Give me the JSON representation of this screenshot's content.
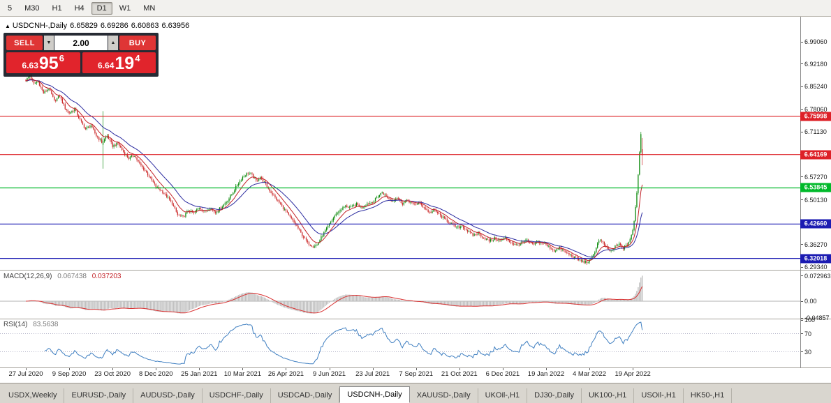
{
  "toolbar": {
    "timeframes": [
      {
        "label": "5",
        "active": false
      },
      {
        "label": "M30",
        "active": false
      },
      {
        "label": "H1",
        "active": false
      },
      {
        "label": "H4",
        "active": false
      },
      {
        "label": "D1",
        "active": true
      },
      {
        "label": "W1",
        "active": false
      },
      {
        "label": "MN",
        "active": false
      }
    ]
  },
  "chart_header": {
    "collapse_icon": "▲",
    "symbol": "USDCNH-,Daily",
    "ohlc": {
      "open": "6.65829",
      "high": "6.69286",
      "low": "6.60863",
      "close": "6.63956"
    }
  },
  "trade_panel": {
    "sell_label": "SELL",
    "buy_label": "BUY",
    "volume": "2.00",
    "spin_down_icon": "▼",
    "spin_up_icon": "▲",
    "sell_price": {
      "prefix": "6.63",
      "big": "95",
      "sup": "6"
    },
    "buy_price": {
      "prefix": "6.64",
      "big": "19",
      "sup": "4"
    },
    "colors": {
      "button_red": "#df3535",
      "price_red": "#e1242c"
    }
  },
  "indicators": {
    "macd_label": {
      "name": "MACD(12,26,9)",
      "main_value": "0.067438",
      "signal_value": "0.037203"
    },
    "rsi_label": {
      "name": "RSI(14)",
      "value": "83.5638"
    }
  },
  "price_axis": {
    "ticks": [
      "6.99060",
      "6.92180",
      "6.85240",
      "6.78060",
      "6.71130",
      "6.57270",
      "6.50130",
      "6.36270",
      "6.29340"
    ],
    "flags": [
      {
        "value": "6.75998",
        "color": "#dd2027"
      },
      {
        "value": "6.64169",
        "color": "#dd2027"
      },
      {
        "value": "6.53845",
        "color": "#00b92a"
      },
      {
        "value": "6.42660",
        "color": "#1b1bb2"
      },
      {
        "value": "6.32018",
        "color": "#1b1bb2"
      }
    ]
  },
  "macd_axis": [
    {
      "label": "0.072963",
      "value": 0.072963
    },
    {
      "label": "0.00",
      "value": 0
    },
    {
      "label": "-0.04857",
      "value": -0.04857
    }
  ],
  "rsi_axis": [
    {
      "label": "100",
      "value": 100
    },
    {
      "label": "70",
      "value": 70
    },
    {
      "label": "30",
      "value": 30
    }
  ],
  "tabs": [
    {
      "label": "USDX,Weekly",
      "active": false
    },
    {
      "label": "EURUSD-,Daily",
      "active": false
    },
    {
      "label": "AUDUSD-,Daily",
      "active": false
    },
    {
      "label": "USDCHF-,Daily",
      "active": false
    },
    {
      "label": "USDCAD-,Daily",
      "active": false
    },
    {
      "label": "USDCNH-,Daily",
      "active": true
    },
    {
      "label": "XAUUSD-,Daily",
      "active": false
    },
    {
      "label": "UKOil-,H1",
      "active": false
    },
    {
      "label": "DJ30-,Daily",
      "active": false
    },
    {
      "label": "UK100-,H1",
      "active": false
    },
    {
      "label": "USOil-,H1",
      "active": false
    },
    {
      "label": "HK50-,H1",
      "active": false
    }
  ],
  "chart_data": {
    "type": "candlestick",
    "symbol": "USDCNH",
    "timeframe": "Daily",
    "title": "USDCNH-,Daily",
    "candle_count": 456,
    "candles_per_label": 32,
    "x_labels": [
      "27 Jul 2020",
      "9 Sep 2020",
      "23 Oct 2020",
      "8 Dec 2020",
      "25 Jan 2021",
      "10 Mar 2021",
      "26 Apr 2021",
      "9 Jun 2021",
      "23 Jul 2021",
      "7 Sep 2021",
      "21 Oct 2021",
      "6 Dec 2021",
      "19 Jan 2022",
      "4 Mar 2022",
      "19 Apr 2022"
    ],
    "last_candle": {
      "open": 6.65829,
      "high": 6.69286,
      "low": 6.60863,
      "close": 6.63956
    },
    "april_2022_spike_high": 6.712,
    "spike_candle": {
      "index": 57,
      "open": 6.672,
      "high": 6.776,
      "low": 6.598,
      "close": 6.683
    },
    "close_anchors": [
      [
        0,
        6.872
      ],
      [
        3,
        6.886
      ],
      [
        6,
        6.86
      ],
      [
        9,
        6.868
      ],
      [
        13,
        6.832
      ],
      [
        17,
        6.846
      ],
      [
        21,
        6.808
      ],
      [
        25,
        6.822
      ],
      [
        29,
        6.785
      ],
      [
        32,
        6.77
      ],
      [
        36,
        6.782
      ],
      [
        40,
        6.748
      ],
      [
        44,
        6.72
      ],
      [
        48,
        6.732
      ],
      [
        52,
        6.7
      ],
      [
        56,
        6.68
      ],
      [
        57,
        6.683
      ],
      [
        60,
        6.7
      ],
      [
        64,
        6.668
      ],
      [
        68,
        6.676
      ],
      [
        72,
        6.65
      ],
      [
        76,
        6.63
      ],
      [
        80,
        6.64
      ],
      [
        84,
        6.612
      ],
      [
        88,
        6.592
      ],
      [
        92,
        6.568
      ],
      [
        96,
        6.542
      ],
      [
        100,
        6.53
      ],
      [
        104,
        6.512
      ],
      [
        108,
        6.49
      ],
      [
        112,
        6.455
      ],
      [
        116,
        6.448
      ],
      [
        120,
        6.468
      ],
      [
        124,
        6.46
      ],
      [
        128,
        6.478
      ],
      [
        132,
        6.465
      ],
      [
        136,
        6.478
      ],
      [
        140,
        6.462
      ],
      [
        144,
        6.478
      ],
      [
        148,
        6.495
      ],
      [
        152,
        6.518
      ],
      [
        156,
        6.548
      ],
      [
        160,
        6.572
      ],
      [
        164,
        6.585
      ],
      [
        167,
        6.578
      ],
      [
        170,
        6.56
      ],
      [
        173,
        6.572
      ],
      [
        176,
        6.555
      ],
      [
        180,
        6.53
      ],
      [
        184,
        6.508
      ],
      [
        188,
        6.488
      ],
      [
        192,
        6.465
      ],
      [
        196,
        6.442
      ],
      [
        200,
        6.42
      ],
      [
        204,
        6.392
      ],
      [
        208,
        6.368
      ],
      [
        212,
        6.358
      ],
      [
        215,
        6.362
      ],
      [
        218,
        6.385
      ],
      [
        221,
        6.405
      ],
      [
        224,
        6.425
      ],
      [
        228,
        6.452
      ],
      [
        232,
        6.47
      ],
      [
        236,
        6.482
      ],
      [
        240,
        6.478
      ],
      [
        244,
        6.488
      ],
      [
        248,
        6.478
      ],
      [
        252,
        6.49
      ],
      [
        256,
        6.495
      ],
      [
        260,
        6.512
      ],
      [
        263,
        6.525
      ],
      [
        266,
        6.512
      ],
      [
        270,
        6.498
      ],
      [
        274,
        6.508
      ],
      [
        278,
        6.49
      ],
      [
        282,
        6.5
      ],
      [
        286,
        6.486
      ],
      [
        290,
        6.492
      ],
      [
        294,
        6.478
      ],
      [
        298,
        6.462
      ],
      [
        302,
        6.468
      ],
      [
        306,
        6.452
      ],
      [
        310,
        6.44
      ],
      [
        314,
        6.428
      ],
      [
        318,
        6.415
      ],
      [
        322,
        6.42
      ],
      [
        326,
        6.405
      ],
      [
        330,
        6.392
      ],
      [
        334,
        6.398
      ],
      [
        338,
        6.384
      ],
      [
        342,
        6.374
      ],
      [
        346,
        6.382
      ],
      [
        350,
        6.375
      ],
      [
        354,
        6.383
      ],
      [
        358,
        6.37
      ],
      [
        362,
        6.36
      ],
      [
        366,
        6.368
      ],
      [
        370,
        6.375
      ],
      [
        374,
        6.362
      ],
      [
        378,
        6.372
      ],
      [
        382,
        6.368
      ],
      [
        386,
        6.356
      ],
      [
        390,
        6.344
      ],
      [
        394,
        6.352
      ],
      [
        398,
        6.34
      ],
      [
        402,
        6.33
      ],
      [
        406,
        6.32
      ],
      [
        410,
        6.312
      ],
      [
        414,
        6.308
      ],
      [
        417,
        6.315
      ],
      [
        420,
        6.342
      ],
      [
        423,
        6.378
      ],
      [
        426,
        6.368
      ],
      [
        429,
        6.35
      ],
      [
        432,
        6.342
      ],
      [
        435,
        6.356
      ],
      [
        438,
        6.364
      ],
      [
        441,
        6.352
      ],
      [
        444,
        6.362
      ],
      [
        446,
        6.38
      ],
      [
        448,
        6.405
      ],
      [
        449,
        6.435
      ],
      [
        450,
        6.478
      ],
      [
        451,
        6.525
      ],
      [
        452,
        6.582
      ],
      [
        453,
        6.648
      ],
      [
        454,
        6.705
      ],
      [
        455,
        6.64
      ]
    ],
    "horizontal_levels": [
      {
        "price": 6.75998,
        "color": "#dd2027"
      },
      {
        "price": 6.64169,
        "color": "#dd2027"
      },
      {
        "price": 6.53845,
        "color": "#00b92a"
      },
      {
        "price": 6.4266,
        "color": "#1b1bb2"
      },
      {
        "price": 6.32018,
        "color": "#1b1bb2"
      }
    ],
    "moving_averages": [
      {
        "period": 10,
        "color": "#c22026"
      },
      {
        "period": 24,
        "color": "#2c2ca0"
      }
    ],
    "macd": {
      "fast": 12,
      "slow": 26,
      "signal": 9,
      "last_main": 0.067438,
      "last_signal": 0.037203,
      "axis_values": [
        0.072963,
        0,
        -0.04857
      ],
      "histogram_color": "#c0c0c0",
      "signal_color": "#d93030"
    },
    "rsi": {
      "period": 14,
      "last": 83.5638,
      "levels": [
        30,
        70
      ],
      "color": "#3f7fc1"
    },
    "up_color": "#0c8a0c",
    "down_color": "#cc2b2b"
  }
}
